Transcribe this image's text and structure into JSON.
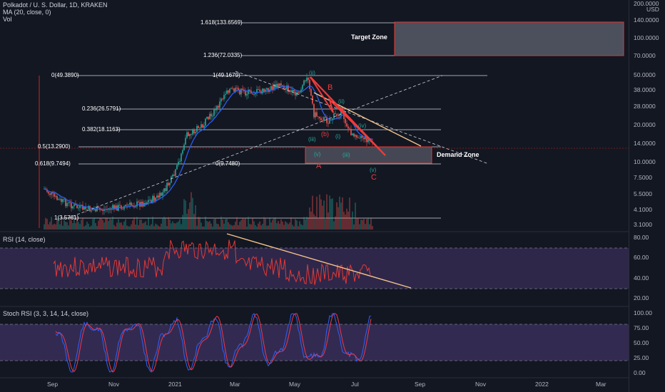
{
  "header": {
    "symbol_line": "Polkadot / U. S. Dollar, 1D, KRAKEN",
    "ma_line": "MA (20, close, 0)",
    "vol_line": "Vol"
  },
  "price_axis": {
    "currency_top": "200.0000",
    "currency_unit": "USD",
    "ticks": [
      "140.0000",
      "100.0000",
      "70.0000",
      "50.0000",
      "38.0000",
      "28.0000",
      "20.0000",
      "14.0000",
      "10.0000",
      "7.5000",
      "5.5000",
      "4.1000",
      "3.1000"
    ]
  },
  "rsi_axis": {
    "ticks": [
      "80.00",
      "60.00",
      "40.00",
      "20.00"
    ]
  },
  "stoch_axis": {
    "ticks": [
      "100.00",
      "75.00",
      "50.00",
      "25.00",
      "0.00"
    ]
  },
  "time_axis": {
    "ticks": [
      "Sep",
      "Nov",
      "2021",
      "Mar",
      "May",
      "Jul",
      "Sep",
      "Nov",
      "2022",
      "Mar"
    ]
  },
  "fib_levels": {
    "upper": [
      "1.618(133.6569)",
      "1.236(72.0335)"
    ],
    "main": [
      "0(49.3890)",
      "0.236(26.5791)",
      "0.382(18.1163)",
      "0.5(13.2900)",
      "0.618(9.7494)",
      "1(3.5761)"
    ],
    "mid": [
      "1(49.1679)",
      "0(9.7480)"
    ]
  },
  "zones": {
    "target": "Target Zone",
    "demand": "Demand Zone"
  },
  "waves": {
    "abc": [
      "A",
      "B",
      "C"
    ],
    "impulse": [
      "(i)",
      "(ii)",
      "(iii)",
      "(iv)",
      "(v)"
    ],
    "sub_b": "(b)",
    "sub_i": "(i)",
    "sub_iii": "(iii)",
    "sub_v": "(v)",
    "sub_ii": "(ii)"
  },
  "rsi": {
    "title": "RSI (14, close)"
  },
  "stoch": {
    "title": "Stoch RSI (3, 3, 14, 14, close)"
  },
  "colors": {
    "bg": "#131722",
    "up": "#26a69a",
    "down": "#ef5350",
    "ma": "#2962ff",
    "rsi": "#e53935",
    "stoch_k": "#2962ff",
    "stoch_d": "#f23645",
    "band": "#7e57c2",
    "trend": "#f5c48a"
  }
}
